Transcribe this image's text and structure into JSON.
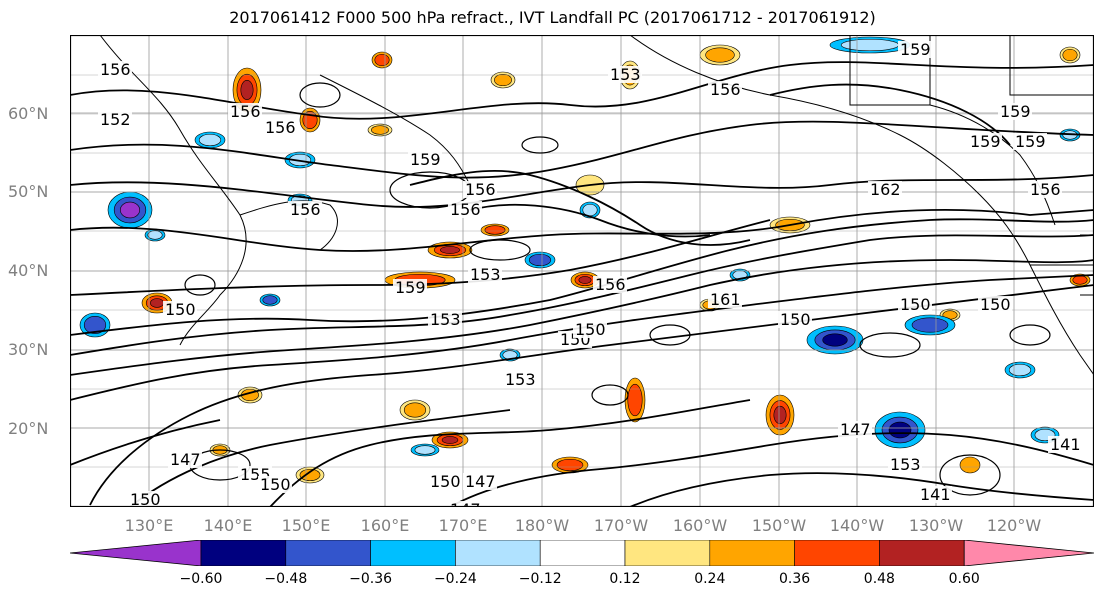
{
  "title": "2017061412 F000 500 hPa refract., IVT Landfall PC (2017061712 - 2017061912)",
  "lat_labels": [
    "60°N",
    "50°N",
    "40°N",
    "30°N",
    "20°N"
  ],
  "lon_labels": [
    "130°E",
    "140°E",
    "150°E",
    "160°E",
    "170°E",
    "180°W",
    "170°W",
    "160°W",
    "150°W",
    "140°W",
    "130°W",
    "120°W"
  ],
  "colorbar": {
    "colors": [
      "#9933cc",
      "#00007f",
      "#3355cc",
      "#00bfff",
      "#b0e2ff",
      "#ffffff",
      "#ffe680",
      "#ffa500",
      "#ff4500",
      "#b22222",
      "#ff88aa"
    ],
    "tick_labels": [
      "−0.60",
      "−0.48",
      "−0.36",
      "−0.24",
      "−0.12",
      "0.12",
      "0.24",
      "0.36",
      "0.48",
      "0.60"
    ],
    "extend": "both"
  },
  "contour_labels": [
    "156",
    "152",
    "156",
    "153",
    "156",
    "159",
    "156",
    "156",
    "162",
    "159",
    "156",
    "159",
    "159",
    "159",
    "156",
    "156",
    "153",
    "159",
    "153",
    "150",
    "153",
    "150",
    "156",
    "150",
    "161",
    "150",
    "150",
    "150",
    "147",
    "153",
    "150",
    "147",
    "147",
    "150",
    "141",
    "147",
    "155",
    "150",
    "141"
  ]
}
